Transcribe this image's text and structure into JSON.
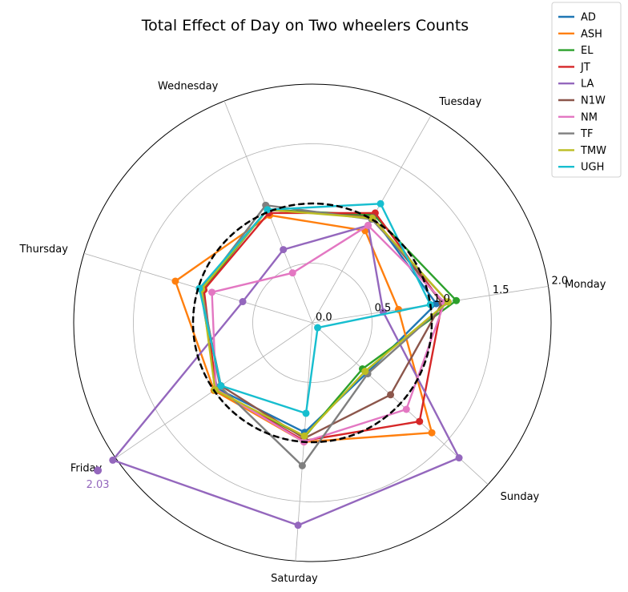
{
  "chart_data": {
    "type": "radar",
    "title": "Total Effect of Day on Two wheelers Counts",
    "categories": [
      "Monday",
      "Tuesday",
      "Wednesday",
      "Thursday",
      "Friday",
      "Saturday",
      "Sunday"
    ],
    "rlim": [
      0,
      2.0
    ],
    "rticks": [
      0.0,
      0.5,
      1.0,
      1.5,
      2.0
    ],
    "rtick_labels": [
      "0.0",
      "0.5",
      "1.0",
      "1.5",
      "2.0"
    ],
    "reference_line": {
      "value": 1.0,
      "style": "dashed",
      "color": "#000000"
    },
    "grid": true,
    "legend_position": "top-right",
    "series": [
      {
        "name": "AD",
        "color": "#1f77b4",
        "values": [
          1.05,
          1.02,
          1.02,
          0.98,
          0.97,
          0.92,
          0.62
        ]
      },
      {
        "name": "ASH",
        "color": "#ff7f0e",
        "values": [
          0.73,
          0.89,
          0.97,
          1.2,
          1.0,
          1.0,
          1.36
        ]
      },
      {
        "name": "EL",
        "color": "#2ca02c",
        "values": [
          1.22,
          1.04,
          1.02,
          0.96,
          0.99,
          0.96,
          0.57
        ]
      },
      {
        "name": "JT",
        "color": "#d62728",
        "values": [
          1.1,
          1.06,
          0.99,
          0.95,
          0.98,
          0.99,
          1.22
        ]
      },
      {
        "name": "LA",
        "color": "#9467bd",
        "values": [
          0.6,
          0.94,
          0.66,
          0.61,
          2.03,
          1.7,
          1.67
        ]
      },
      {
        "name": "N1W",
        "color": "#8c564b",
        "values": [
          1.1,
          1.02,
          1.02,
          0.98,
          0.93,
          0.97,
          0.89
        ]
      },
      {
        "name": "NM",
        "color": "#e377c2",
        "values": [
          1.12,
          0.94,
          0.45,
          0.88,
          0.98,
          1.0,
          1.07
        ]
      },
      {
        "name": "TF",
        "color": "#7f7f7f",
        "values": [
          1.15,
          1.0,
          1.06,
          0.97,
          0.94,
          1.2,
          0.63
        ]
      },
      {
        "name": "TMW",
        "color": "#bcbd22",
        "values": [
          1.15,
          1.01,
          1.02,
          0.97,
          0.99,
          0.95,
          0.6
        ]
      },
      {
        "name": "UGH",
        "color": "#17becf",
        "values": [
          1.0,
          1.15,
          1.02,
          0.99,
          0.93,
          0.76,
          0.06
        ]
      }
    ],
    "annotations": [
      {
        "text": "2.03",
        "color": "#9467bd"
      }
    ]
  }
}
